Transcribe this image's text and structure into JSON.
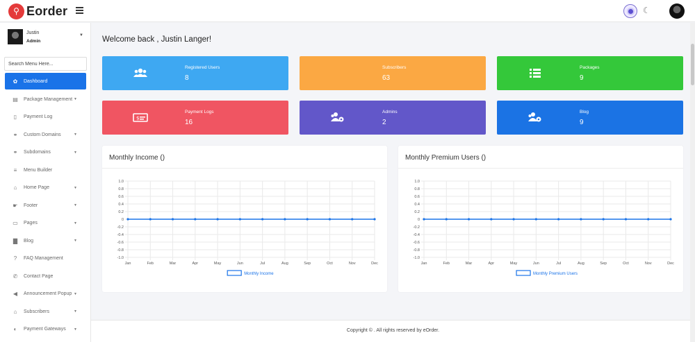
{
  "app": {
    "logo_text": "Eorder"
  },
  "user": {
    "name": "Justin",
    "role": "Admin"
  },
  "search": {
    "placeholder": "Search Menu Here..."
  },
  "sidebar": {
    "items": [
      {
        "label": "Dashboard",
        "icon": "palette-icon",
        "glyph": "✿",
        "caret": false,
        "active": true
      },
      {
        "label": "Package Management",
        "icon": "package-icon",
        "glyph": "▤",
        "caret": true
      },
      {
        "label": "Payment Log",
        "icon": "document-icon",
        "glyph": "▯",
        "caret": false
      },
      {
        "label": "Custom Domains",
        "icon": "link-icon",
        "glyph": "⚭",
        "caret": true
      },
      {
        "label": "Subdomains",
        "icon": "link-icon",
        "glyph": "⚭",
        "caret": true
      },
      {
        "label": "Menu Builder",
        "icon": "bars-icon",
        "glyph": "≡",
        "caret": false
      },
      {
        "label": "Home Page",
        "icon": "home-icon",
        "glyph": "⌂",
        "caret": true
      },
      {
        "label": "Footer",
        "icon": "hand-icon",
        "glyph": "☛",
        "caret": true
      },
      {
        "label": "Pages",
        "icon": "file-icon",
        "glyph": "▭",
        "caret": true
      },
      {
        "label": "Blog",
        "icon": "book-icon",
        "glyph": "▇",
        "caret": true
      },
      {
        "label": "FAQ Management",
        "icon": "question-icon",
        "glyph": "?",
        "caret": false
      },
      {
        "label": "Contact Page",
        "icon": "whatsapp-icon",
        "glyph": "✆",
        "caret": false
      },
      {
        "label": "Announcement Popup",
        "icon": "bullhorn-icon",
        "glyph": "◀",
        "caret": true
      },
      {
        "label": "Subscribers",
        "icon": "bell-icon",
        "glyph": "⌂",
        "caret": true
      },
      {
        "label": "Payment Gateways",
        "icon": "gateway-icon",
        "glyph": "◐",
        "caret": true
      }
    ]
  },
  "main": {
    "welcome": "Welcome back , Justin Langer!"
  },
  "stats": [
    {
      "label": "Registered Users",
      "value": "8",
      "color": "#3ea8f2",
      "icon": "users-icon"
    },
    {
      "label": "Subscribers",
      "value": "63",
      "color": "#fba843",
      "icon": "subscribers-icon"
    },
    {
      "label": "Packages",
      "value": "9",
      "color": "#34c83a",
      "icon": "list-icon"
    },
    {
      "label": "Payment Logs",
      "value": "16",
      "color": "#f05562",
      "icon": "money-icon"
    },
    {
      "label": "Admins",
      "value": "2",
      "color": "#6257c9",
      "icon": "users-cog-icon"
    },
    {
      "label": "Blog",
      "value": "9",
      "color": "#1b73e4",
      "icon": "users-cog-icon"
    }
  ],
  "charts": [
    {
      "title": "Monthly Income ()"
    },
    {
      "title": "Monthly Premium Users ()"
    }
  ],
  "chart_data": [
    {
      "type": "line",
      "title": "Monthly Income ()",
      "categories": [
        "Jan",
        "Feb",
        "Mar",
        "Apr",
        "May",
        "Jun",
        "Jul",
        "Aug",
        "Sep",
        "Oct",
        "Nov",
        "Dec"
      ],
      "series": [
        {
          "name": "Monthly Income",
          "values": [
            0,
            0,
            0,
            0,
            0,
            0,
            0,
            0,
            0,
            0,
            0,
            0
          ]
        }
      ],
      "ylim": [
        -1.0,
        1.0
      ],
      "yticks": [
        "1.0",
        "0.8",
        "0.6",
        "0.4",
        "0.2",
        "0",
        "-0.2",
        "-0.4",
        "-0.6",
        "-0.8",
        "-1.0"
      ],
      "grid": true,
      "legend": "bottom",
      "color": "#1a73e8"
    },
    {
      "type": "line",
      "title": "Monthly Premium Users ()",
      "categories": [
        "Jan",
        "Feb",
        "Mar",
        "Apr",
        "May",
        "Jun",
        "Jul",
        "Aug",
        "Sep",
        "Oct",
        "Nov",
        "Dec"
      ],
      "series": [
        {
          "name": "Monthly Premium Users",
          "values": [
            0,
            0,
            0,
            0,
            0,
            0,
            0,
            0,
            0,
            0,
            0,
            0
          ]
        }
      ],
      "ylim": [
        -1.0,
        1.0
      ],
      "yticks": [
        "1.0",
        "0.8",
        "0.6",
        "0.4",
        "0.2",
        "0",
        "-0.2",
        "-0.4",
        "-0.6",
        "-0.8",
        "-1.0"
      ],
      "grid": true,
      "legend": "bottom",
      "color": "#1a73e8"
    }
  ],
  "footer": {
    "text": "Copyright © . All rights reserved by eOrder."
  }
}
